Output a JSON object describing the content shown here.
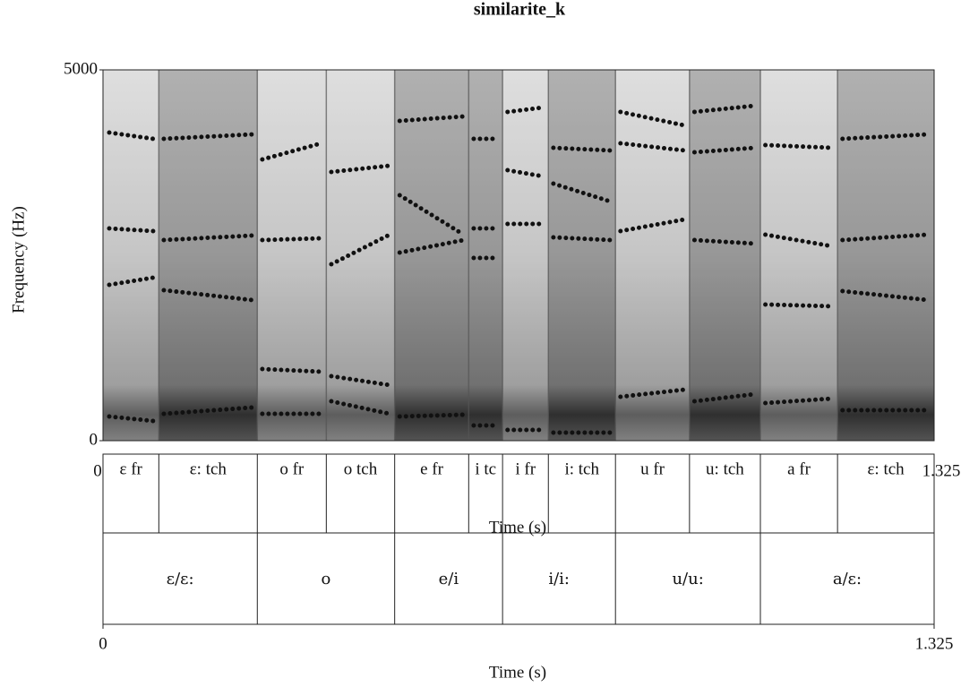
{
  "chart_data": {
    "type": "spectrogram",
    "title": "similarite_k",
    "x_label": "Time (s)",
    "y_label": "Frequency (Hz)",
    "xlim": [
      0,
      1.325
    ],
    "xticks": [
      0,
      1.325
    ],
    "ylim": [
      0,
      5000
    ],
    "yticks": [
      0,
      5000
    ],
    "dot_color": "#111111",
    "x": [
      0.01,
      0.08,
      0.089,
      0.097,
      0.238,
      0.246,
      0.254,
      0.348,
      0.356,
      0.364,
      0.457,
      0.465,
      0.473,
      0.575,
      0.583,
      0.591,
      0.629,
      0.637,
      0.645,
      0.702,
      0.71,
      0.718,
      0.809,
      0.817,
      0.825,
      0.927,
      0.935,
      0.943,
      1.04,
      1.048,
      1.056,
      1.163,
      1.171,
      1.179,
      1.315
    ],
    "series": [
      {
        "values": [
          326,
          266,
          null,
          362,
          447,
          null,
          362,
          362,
          null,
          531,
          362,
          null,
          326,
          350,
          null,
          205,
          205,
          null,
          145,
          145,
          null,
          109,
          109,
          null,
          592,
          688,
          null,
          531,
          628,
          null,
          507,
          568,
          null,
          411,
          411
        ]
      },
      {
        "values": [
          2101,
          2198,
          null,
          2029,
          1896,
          null,
          966,
          930,
          null,
          870,
          749,
          null,
          2536,
          2705,
          null,
          2464,
          2464,
          null,
          2923,
          2923,
          null,
          2742,
          2705,
          null,
          2826,
          2983,
          null,
          2705,
          2657,
          null,
          1836,
          1812,
          null,
          2017,
          1896
        ]
      },
      {
        "values": [
          2862,
          2826,
          null,
          2705,
          2766,
          null,
          2705,
          2729,
          null,
          2379,
          2778,
          null,
          3309,
          2778,
          null,
          2862,
          2862,
          null,
          3647,
          3563,
          null,
          3466,
          3225,
          null,
          4010,
          3913,
          null,
          3889,
          3949,
          null,
          2778,
          2621,
          null,
          2705,
          2778
        ]
      },
      {
        "values": [
          4155,
          4070,
          null,
          4070,
          4130,
          null,
          3792,
          4010,
          null,
          3623,
          3708,
          null,
          4312,
          4372,
          null,
          4070,
          4070,
          null,
          4433,
          4493,
          null,
          3949,
          3913,
          null,
          4433,
          4251,
          null,
          4433,
          4517,
          null,
          3986,
          3949,
          null,
          4070,
          4130
        ]
      }
    ],
    "tiers": [
      {
        "boundaries": [
          0.089,
          0.246,
          0.356,
          0.465,
          0.583,
          0.637,
          0.71,
          0.817,
          0.935,
          1.048,
          1.171
        ],
        "labels": [
          "ε fr",
          "ε: tch",
          "o fr",
          "o tch",
          "e fr",
          "i tc",
          "i fr",
          "i: tch",
          "u fr",
          "u: tch",
          "a fr",
          "ε: tch"
        ]
      },
      {
        "boundaries": [
          0.246,
          0.465,
          0.637,
          0.817,
          1.048
        ],
        "labels": [
          "ε/ε:",
          "o",
          "e/i",
          "i/i:",
          "u/u:",
          "a/ε:"
        ]
      }
    ]
  }
}
